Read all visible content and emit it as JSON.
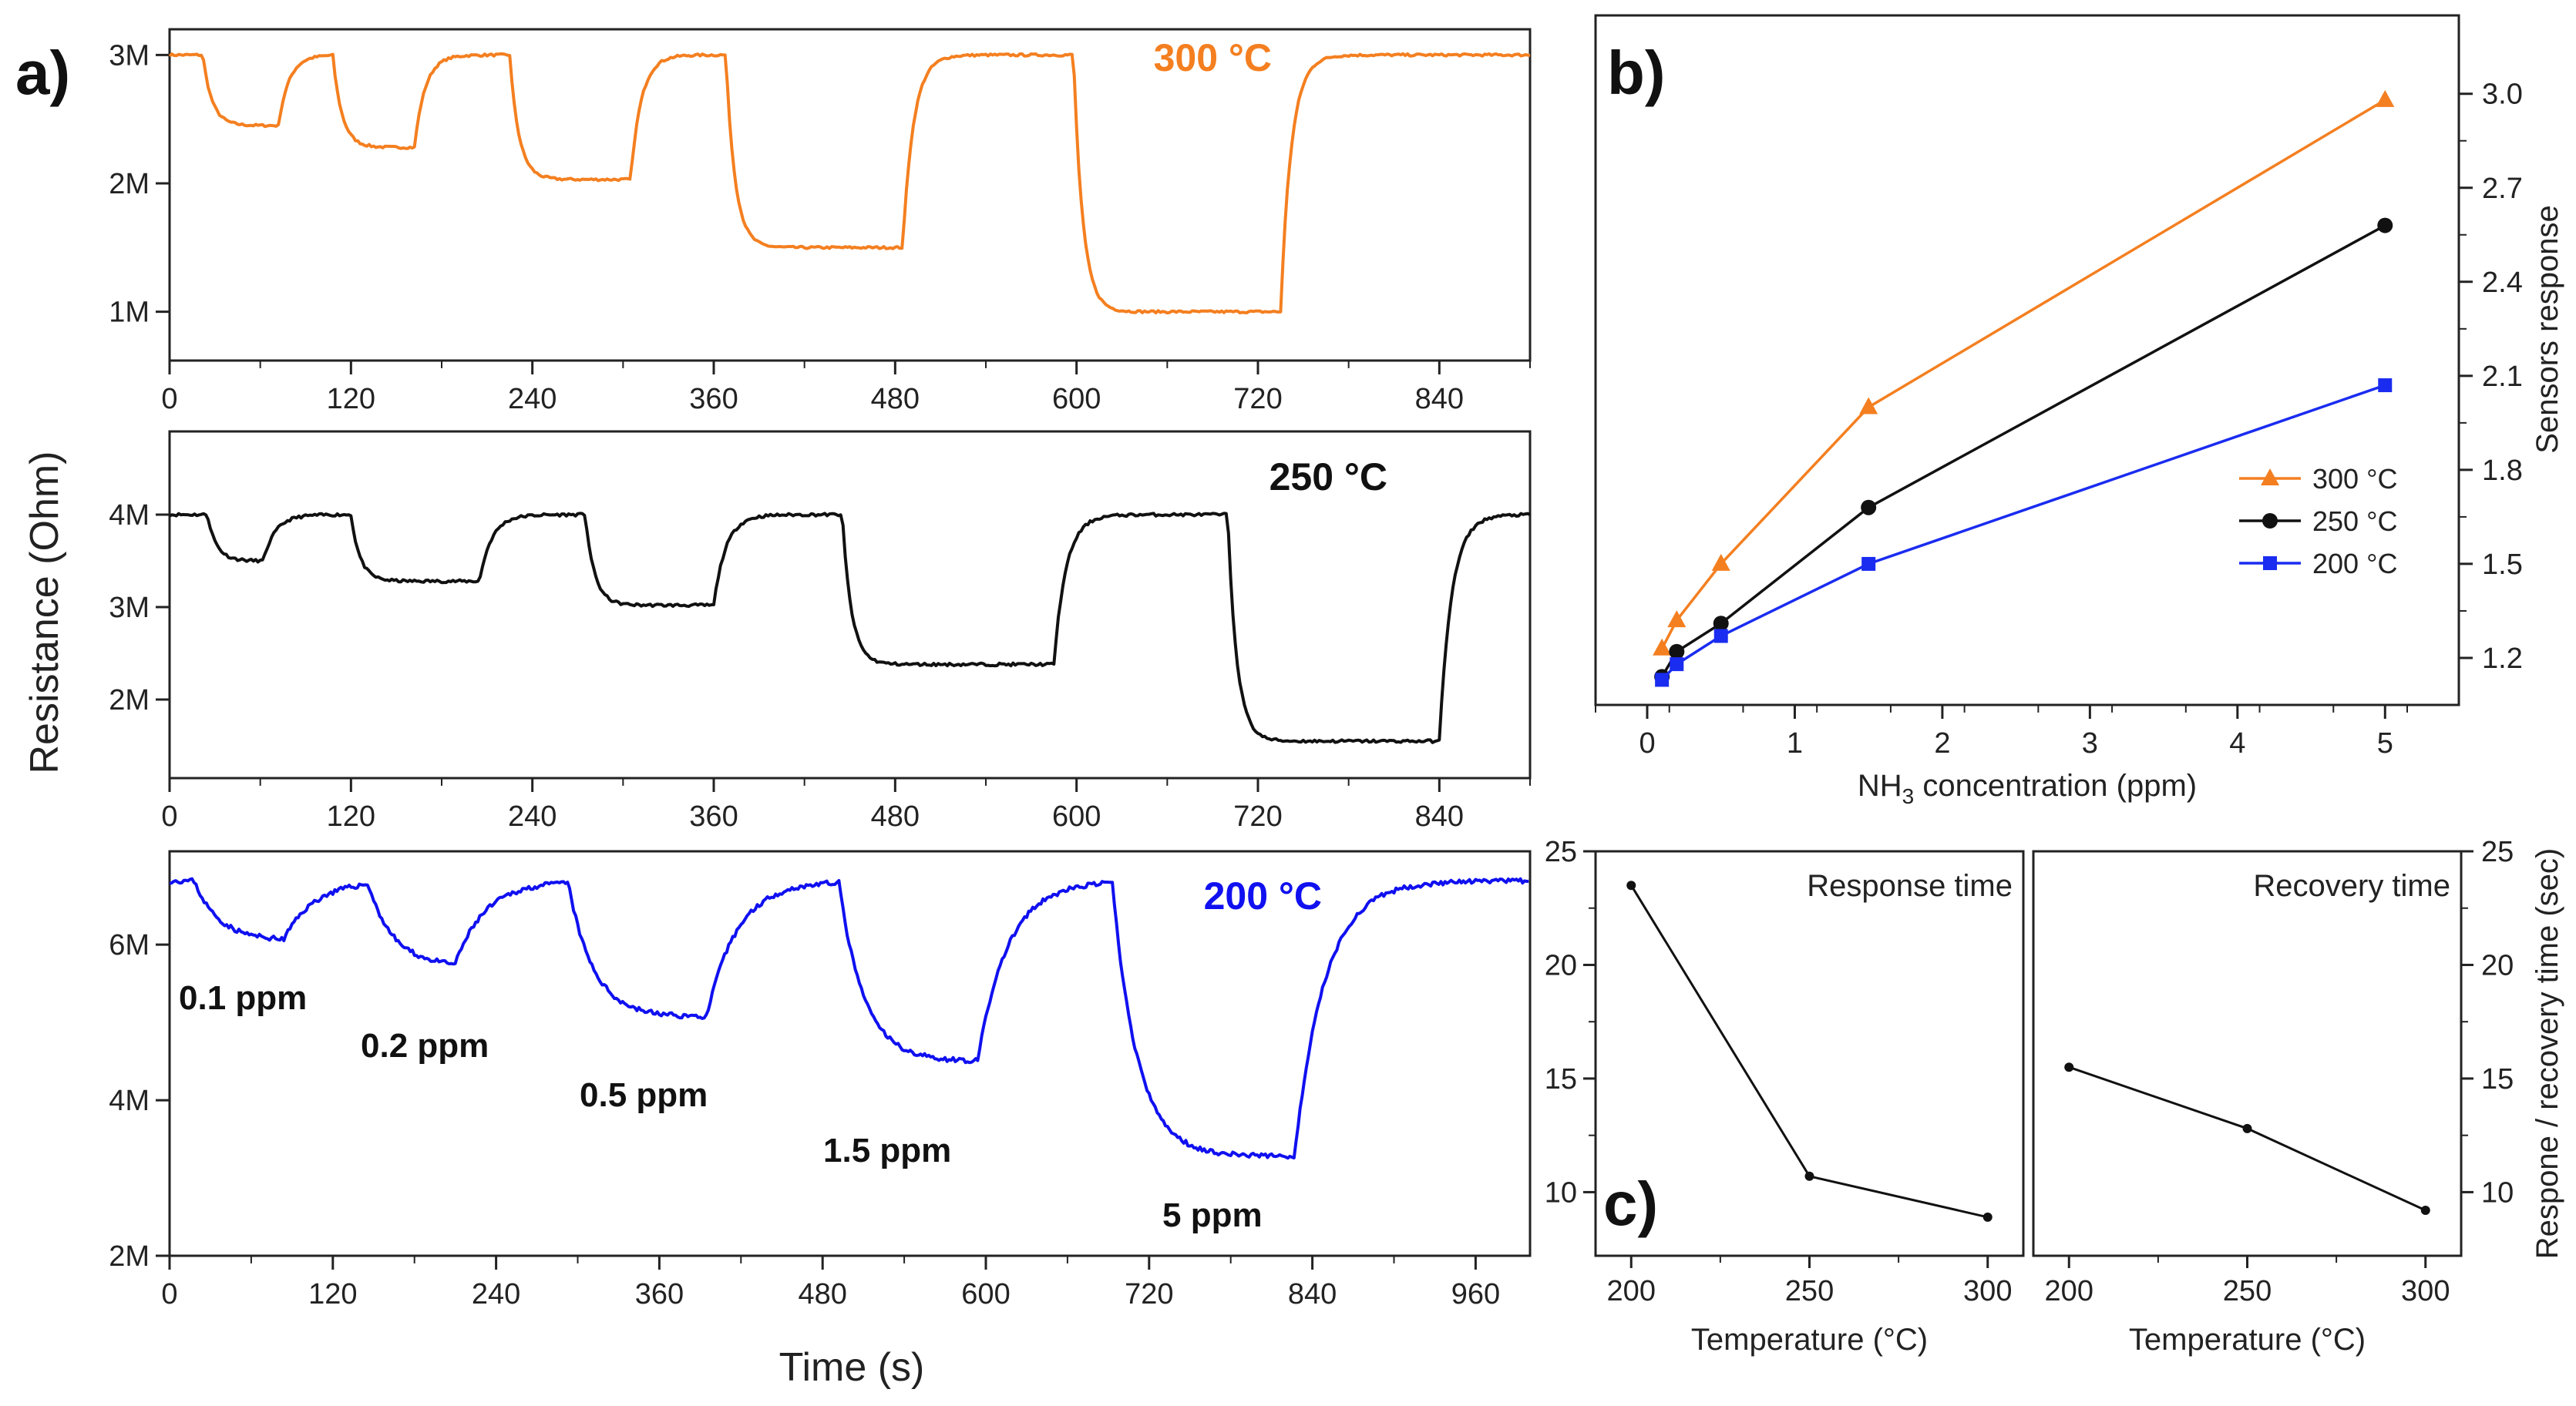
{
  "figure": {
    "panel_a_label": "a)",
    "panel_b_label": "b)",
    "panel_c_label": "c)",
    "y_label_shared": "Resistance (Ohm)",
    "x_label_shared": "Time (s)"
  },
  "chart_data": [
    {
      "id": "a1",
      "type": "line",
      "title": "300 °C",
      "color": "#f47f20",
      "xlabel": "Time (s)",
      "ylabel": "Resistance (Ohm)",
      "xlim": [
        0,
        900
      ],
      "ylim": [
        0.62,
        3.2
      ],
      "xticks": [
        0,
        120,
        240,
        360,
        480,
        600,
        720,
        840
      ],
      "xtick_labels": [
        "0",
        "120",
        "240",
        "360",
        "480",
        "600",
        "720",
        "840"
      ],
      "yticks": [
        1,
        2,
        3
      ],
      "ytick_labels": [
        "1M",
        "2M",
        "3M"
      ],
      "baseline": 3.0,
      "cycles": [
        {
          "on": 22,
          "off": 72,
          "min": 2.45
        },
        {
          "on": 108,
          "off": 162,
          "min": 2.28
        },
        {
          "on": 225,
          "off": 305,
          "min": 2.03
        },
        {
          "on": 368,
          "off": 485,
          "min": 1.5
        },
        {
          "on": 598,
          "off": 735,
          "min": 1.0
        }
      ]
    },
    {
      "id": "a2",
      "type": "line",
      "title": "250 °C",
      "color": "#111111",
      "xlabel": "Time (s)",
      "ylabel": "Resistance (Ohm)",
      "xlim": [
        0,
        900
      ],
      "ylim": [
        1.15,
        4.9
      ],
      "xticks": [
        0,
        120,
        240,
        360,
        480,
        600,
        720,
        840
      ],
      "xtick_labels": [
        "0",
        "120",
        "240",
        "360",
        "480",
        "600",
        "720",
        "840"
      ],
      "yticks": [
        2,
        3,
        4
      ],
      "ytick_labels": [
        "2M",
        "3M",
        "4M"
      ],
      "baseline": 4.0,
      "cycles": [
        {
          "on": 25,
          "off": 62,
          "min": 3.5
        },
        {
          "on": 120,
          "off": 205,
          "min": 3.28
        },
        {
          "on": 275,
          "off": 360,
          "min": 3.02
        },
        {
          "on": 445,
          "off": 585,
          "min": 2.38
        },
        {
          "on": 700,
          "off": 840,
          "min": 1.55
        }
      ]
    },
    {
      "id": "a3",
      "type": "line",
      "title": "200 °C",
      "color": "#1010f0",
      "xlabel": "Time (s)",
      "ylabel": "Resistance (Ohm)",
      "xlim": [
        0,
        1000
      ],
      "ylim": [
        2.0,
        7.2
      ],
      "xticks": [
        0,
        120,
        240,
        360,
        480,
        600,
        720,
        840,
        960
      ],
      "xtick_labels": [
        "0",
        "120",
        "240",
        "360",
        "480",
        "600",
        "720",
        "840",
        "960"
      ],
      "yticks": [
        2,
        4,
        6
      ],
      "ytick_labels": [
        "2M",
        "4M",
        "6M"
      ],
      "baseline": 6.82,
      "cycles": [
        {
          "on": 18,
          "off": 84,
          "min": 6.05
        },
        {
          "on": 146,
          "off": 210,
          "min": 5.72
        },
        {
          "on": 293,
          "off": 395,
          "min": 5.07
        },
        {
          "on": 492,
          "off": 594,
          "min": 4.5
        },
        {
          "on": 693,
          "off": 827,
          "min": 3.28
        }
      ],
      "annotations": [
        "0.1 ppm",
        "0.2 ppm",
        "0.5 ppm",
        "1.5 ppm",
        "5 ppm"
      ]
    },
    {
      "id": "b",
      "type": "line",
      "xlabel_main": "NH",
      "xlabel_sub": "3",
      "xlabel_rest": " concentration (ppm)",
      "ylabel": "Sensors response",
      "xlim": [
        -0.35,
        5.5
      ],
      "ylim": [
        1.05,
        3.25
      ],
      "xticks": [
        0,
        1,
        2,
        3,
        4,
        5
      ],
      "xtick_labels": [
        "0",
        "1",
        "2",
        "3",
        "4",
        "5"
      ],
      "yticks": [
        1.2,
        1.5,
        1.8,
        2.1,
        2.4,
        2.7,
        3.0
      ],
      "ytick_labels": [
        "1.2",
        "1.5",
        "1.8",
        "2.1",
        "2.4",
        "2.7",
        "3.0"
      ],
      "legend_position": "bottom-right",
      "x": [
        0.1,
        0.2,
        0.5,
        1.5,
        5
      ],
      "series": [
        {
          "name": "300 °C",
          "color": "#f47f20",
          "marker": "triangle",
          "values": [
            1.23,
            1.32,
            1.5,
            2.0,
            2.98
          ]
        },
        {
          "name": "250 °C",
          "color": "#111111",
          "marker": "circle",
          "values": [
            1.14,
            1.22,
            1.31,
            1.68,
            2.58
          ]
        },
        {
          "name": "200 °C",
          "color": "#1a2cf0",
          "marker": "square",
          "values": [
            1.13,
            1.18,
            1.27,
            1.5,
            2.07
          ]
        }
      ]
    },
    {
      "id": "c1",
      "type": "line",
      "title": "Response time",
      "xlabel": "Temperature (°C)",
      "xlim": [
        190,
        310
      ],
      "ylim": [
        7.2,
        25
      ],
      "xticks": [
        200,
        250,
        300
      ],
      "xtick_labels": [
        "200",
        "250",
        "300"
      ],
      "yticks": [
        10,
        15,
        20,
        25
      ],
      "ytick_labels": [
        "10",
        "15",
        "20",
        "25"
      ],
      "x": [
        200,
        250,
        300
      ],
      "values": [
        23.5,
        10.7,
        8.9
      ]
    },
    {
      "id": "c2",
      "type": "line",
      "title": "Recovery time",
      "xlabel": "Temperature (°C)",
      "ylabel": "Respone / recovery time (sec)",
      "xlim": [
        190,
        310
      ],
      "ylim": [
        7.2,
        25
      ],
      "xticks": [
        200,
        250,
        300
      ],
      "xtick_labels": [
        "200",
        "250",
        "300"
      ],
      "yticks": [
        10,
        15,
        20,
        25
      ],
      "ytick_labels": [
        "10",
        "15",
        "20",
        "25"
      ],
      "x": [
        200,
        250,
        300
      ],
      "values": [
        15.5,
        12.8,
        9.2
      ]
    }
  ]
}
